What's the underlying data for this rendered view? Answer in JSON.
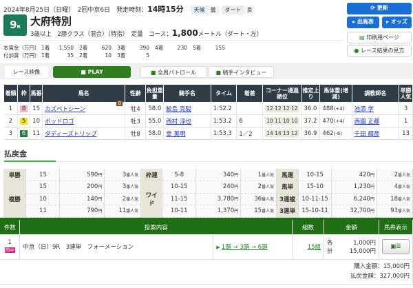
{
  "header": {
    "date": "2024年8月25日（日曜）",
    "meeting": "2回中京6日",
    "start_label": "発走時刻：",
    "start_time": "14時15分",
    "weather_label": "天候",
    "weather": "曇",
    "surface_label": "ダート",
    "condition": "良"
  },
  "race": {
    "number": "9",
    "unit": "R",
    "name": "大府特別",
    "conditions": "3歳以上　2勝クラス（混合）（特指）　定量",
    "course_label": "コース：",
    "distance": "1,800",
    "course_suffix": "メートル（ダート・左）"
  },
  "prize": {
    "main_label": "本賞金（万円）",
    "main": [
      [
        "1着",
        "1,550"
      ],
      [
        "2着",
        "620"
      ],
      [
        "3着",
        "390"
      ],
      [
        "4着",
        "230"
      ],
      [
        "5着",
        "155"
      ]
    ],
    "add_label": "付加賞（万円）",
    "add": [
      [
        "1着",
        "35"
      ],
      [
        "2着",
        "10"
      ],
      [
        "3着",
        "5"
      ]
    ]
  },
  "buttons": {
    "refresh": "更新",
    "entries": "出馬表",
    "odds": "オッズ",
    "print": "印刷用ページ",
    "howto": "レース結果の見方"
  },
  "video": {
    "label": "レース映像",
    "play": "PLAY",
    "patrol": "全周パトロール",
    "interview": "騎手インタビュー"
  },
  "results": {
    "headers": [
      "着順",
      "枠",
      "馬番",
      "馬名",
      "性齢",
      "負担重量",
      "騎手名",
      "タイム",
      "着差",
      "コーナー通過順位",
      "推定上り",
      "馬体重(増減)",
      "調教師名",
      "単勝人気"
    ],
    "rows": [
      {
        "pos": "1",
        "waku": "8",
        "waku_color": "#f6b3cc",
        "waku_text": "#333",
        "num": "15",
        "horse": "カズペトシーン",
        "blinker": "B",
        "sexage": "牡4",
        "weight": "58.0",
        "jockey": "鮫島 克駿",
        "time": "1:52.2",
        "margin": "",
        "corner": "12 12 12 12",
        "last": "36.0",
        "bw": "488",
        "bwd": "(+4)",
        "trainer": "池添 学",
        "pop": "3"
      },
      {
        "pos": "2",
        "waku": "5",
        "waku_color": "#f7e11a",
        "waku_text": "#333",
        "num": "10",
        "horse": "ポッドロゴ",
        "blinker": "",
        "sexage": "牡3",
        "weight": "55.0",
        "jockey": "西村 淳也",
        "time": "1:53.2",
        "margin": "6",
        "corner": "10 11 10 10",
        "last": "37.2",
        "bw": "470",
        "bwd": "(+4)",
        "trainer": "西園 正都",
        "pop": "1"
      },
      {
        "pos": "3",
        "waku": "6",
        "waku_color": "#237a3a",
        "waku_text": "#fff",
        "num": "11",
        "horse": "ダディーズトリップ",
        "blinker": "",
        "sexage": "牡8",
        "weight": "58.0",
        "jockey": "幸 英明",
        "time": "1:53.3",
        "margin": "1／2",
        "corner": "14 14 13 12",
        "last": "36.9",
        "bw": "462",
        "bwd": "(-6)",
        "trainer": "千田 輝彦",
        "pop": "13"
      }
    ]
  },
  "payout": {
    "title": "払戻金",
    "yen": "円",
    "ninki": "番人気",
    "rows": [
      [
        {
          "type": "単勝",
          "span": 1,
          "n": "15",
          "amt": "590",
          "pop": "3"
        },
        {
          "type": "枠連",
          "span": 1,
          "n": "5-8",
          "amt": "340",
          "pop": "1"
        },
        {
          "type": "馬連",
          "span": 1,
          "n": "10-15",
          "amt": "420",
          "pop": "2"
        }
      ],
      [
        {
          "type": "複勝",
          "span": 3,
          "n": "15",
          "amt": "200",
          "pop": "3"
        },
        {
          "type": "ワイド",
          "span": 3,
          "n": "10-15",
          "amt": "240",
          "pop": "2"
        },
        {
          "type": "馬単",
          "span": 1,
          "n": "15-10",
          "amt": "1,230",
          "pop": "4"
        }
      ],
      [
        {
          "n": "10",
          "amt": "140",
          "pop": "2"
        },
        {
          "n": "11-15",
          "amt": "3,780",
          "pop": "36"
        },
        {
          "type": "3連複",
          "span": 1,
          "n": "10-11-15",
          "amt": "6,240",
          "pop": "18"
        }
      ],
      [
        {
          "n": "11",
          "amt": "790",
          "pop": "11"
        },
        {
          "n": "10-11",
          "amt": "1,370",
          "pop": "15"
        },
        {
          "type": "3連単",
          "span": 1,
          "n": "15-10-11",
          "amt": "32,700",
          "pop": "93"
        }
      ]
    ]
  },
  "bet": {
    "headers": [
      "件数",
      "投票内容",
      "組数",
      "金額",
      "馬券表示"
    ],
    "count": "1",
    "hit": "的中",
    "content": "中京（日）9R　3連単　フォーメーション",
    "formation": "1頭 → 3頭 → 6頭",
    "combos": "15組",
    "each_label": "各",
    "each": "1,000円",
    "total_label": "計",
    "total": "15,000円",
    "purchase": "購入金額：15,000円",
    "refund": "払戻金額：327,000円"
  },
  "colors": {
    "accent_green": "#1e6e14",
    "button_blue": "#1a6fd6",
    "table_header": "#2f3c45",
    "race_badge": "#1a7a5a"
  }
}
